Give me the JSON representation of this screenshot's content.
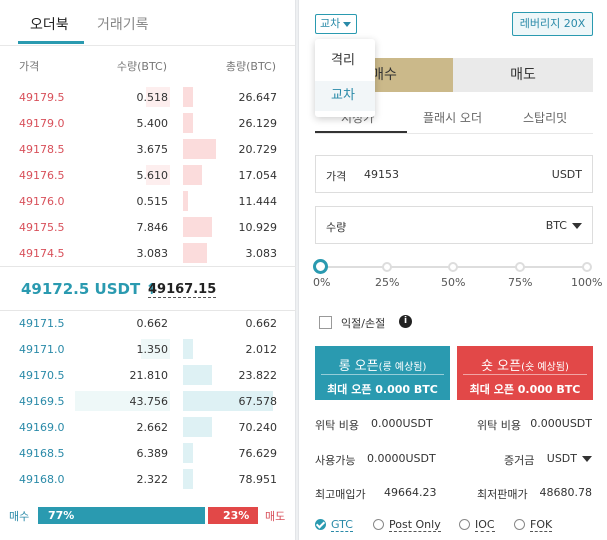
{
  "orderbook": {
    "tabs": [
      "오더북",
      "거래기록"
    ],
    "headers": {
      "price": "가격",
      "qty": "수량(BTC)",
      "total": "총량(BTC)"
    },
    "asks": [
      {
        "price": "49179.5",
        "qty": "0.518",
        "total": "26.647",
        "qty_level": 0.25,
        "total_level": 0.1
      },
      {
        "price": "49179.0",
        "qty": "5.400",
        "total": "26.129",
        "qty_level": 0.0,
        "total_level": 0.1
      },
      {
        "price": "49178.5",
        "qty": "3.675",
        "total": "20.729",
        "qty_level": 0.0,
        "total_level": 0.35
      },
      {
        "price": "49176.5",
        "qty": "5.610",
        "total": "17.054",
        "qty_level": 0.25,
        "total_level": 0.2
      },
      {
        "price": "49176.0",
        "qty": "0.515",
        "total": "11.444",
        "qty_level": 0.0,
        "total_level": 0.05
      },
      {
        "price": "49175.5",
        "qty": "7.846",
        "total": "10.929",
        "qty_level": 0.0,
        "total_level": 0.3
      },
      {
        "price": "49174.5",
        "qty": "3.083",
        "total": "3.083",
        "qty_level": 0.0,
        "total_level": 0.25
      }
    ],
    "last_price": "49172.5 USDT ↑",
    "mark_price": "49167.15",
    "bids": [
      {
        "price": "49171.5",
        "qty": "0.662",
        "total": "0.662",
        "qty_level": 0.0,
        "total_level": 0.0
      },
      {
        "price": "49171.0",
        "qty": "1.350",
        "total": "2.012",
        "qty_level": 0.3,
        "total_level": 0.1
      },
      {
        "price": "49170.5",
        "qty": "21.810",
        "total": "23.822",
        "qty_level": 0.0,
        "total_level": 0.3
      },
      {
        "price": "49169.5",
        "qty": "43.756",
        "total": "67.578",
        "qty_level": 1.0,
        "total_level": 0.95
      },
      {
        "price": "49169.0",
        "qty": "2.662",
        "total": "70.240",
        "qty_level": 0.0,
        "total_level": 0.3
      },
      {
        "price": "49168.5",
        "qty": "6.389",
        "total": "76.629",
        "qty_level": 0.0,
        "total_level": 0.1
      },
      {
        "price": "49168.0",
        "qty": "2.322",
        "total": "78.951",
        "qty_level": 0.0,
        "total_level": 0.1
      }
    ],
    "ratio": {
      "buy_label": "매수",
      "sell_label": "매도",
      "buy_pct": "77%",
      "sell_pct": "23%"
    }
  },
  "order_panel": {
    "margin_mode": "교차",
    "leverage": "레버리지 20X",
    "dropdown_options": [
      "격리",
      "교차"
    ],
    "side_tabs": {
      "buy": "매수",
      "sell": "매도"
    },
    "order_types": [
      "지정가",
      "플래시 오더",
      "스탑리밋"
    ],
    "price_field": {
      "label": "가격",
      "value": "49153",
      "unit": "USDT"
    },
    "qty_field": {
      "label": "수량",
      "unit": "BTC"
    },
    "slider": {
      "ticks": [
        "0%",
        "25%",
        "50%",
        "75%",
        "100%"
      ],
      "value_pct": 0
    },
    "tpsl_label": "익절/손절",
    "long_button": {
      "label": "롱 오픈",
      "sub": "(롱 예상됨)",
      "max": "최대 오픈 0.000 BTC"
    },
    "short_button": {
      "label": "숏 오픈",
      "sub": "(숏 예상됨)",
      "max": "최대 오픈 0.000 BTC"
    },
    "fees": {
      "left_label": "위탁 비용",
      "left_value": "0.000USDT",
      "right_label": "위탁 비용",
      "right_value": "0.000USDT"
    },
    "available": {
      "label": "사용가능",
      "value": "0.0000USDT",
      "margin_label": "증거금",
      "margin_unit": "USDT"
    },
    "max_buy": {
      "label": "최고매입가",
      "value": "49664.23"
    },
    "min_sell": {
      "label": "최저판매가",
      "value": "48680.78"
    },
    "tif_options": [
      "GTC",
      "Post Only",
      "IOC",
      "FOK"
    ],
    "colors": {
      "accent": "#2a9ab0",
      "sell": "#e24848",
      "buy_tab": "#cbb98a"
    }
  }
}
